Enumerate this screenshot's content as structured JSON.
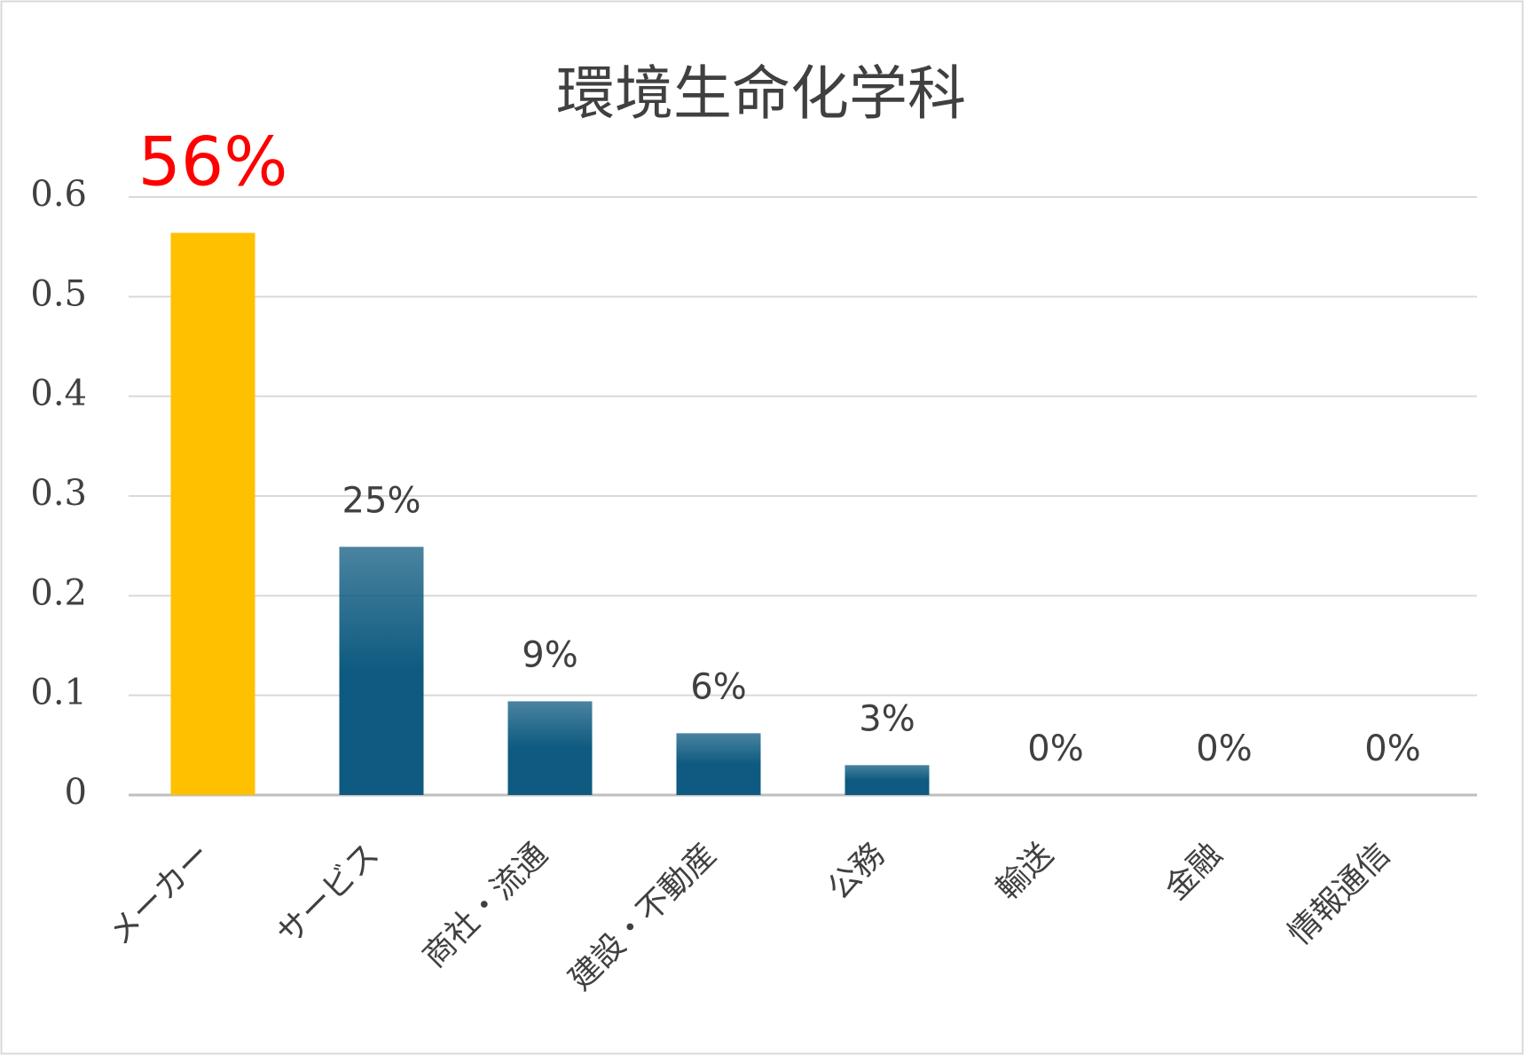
{
  "chart_data": {
    "type": "bar",
    "title": "環境生命化学科",
    "categories": [
      "メーカー",
      "サービス",
      "商社・流通",
      "建設・不動産",
      "公務",
      "輸送",
      "金融",
      "情報通信"
    ],
    "values": [
      0.564,
      0.249,
      0.094,
      0.062,
      0.03,
      0,
      0,
      0
    ],
    "value_labels": [
      "56%",
      "25%",
      "9%",
      "6%",
      "3%",
      "0%",
      "0%",
      "0%"
    ],
    "colors": [
      "#ffc000",
      "#0e5a80",
      "#0e5a80",
      "#0e5a80",
      "#0e5a80",
      "#0e5a80",
      "#0e5a80",
      "#0e5a80"
    ],
    "highlight_index": 0,
    "highlight_label_color": "#ff0000",
    "ylim": [
      0,
      0.6
    ],
    "yticks": [
      0,
      0.1,
      0.2,
      0.3,
      0.4,
      0.5,
      0.6
    ],
    "grid": true
  }
}
